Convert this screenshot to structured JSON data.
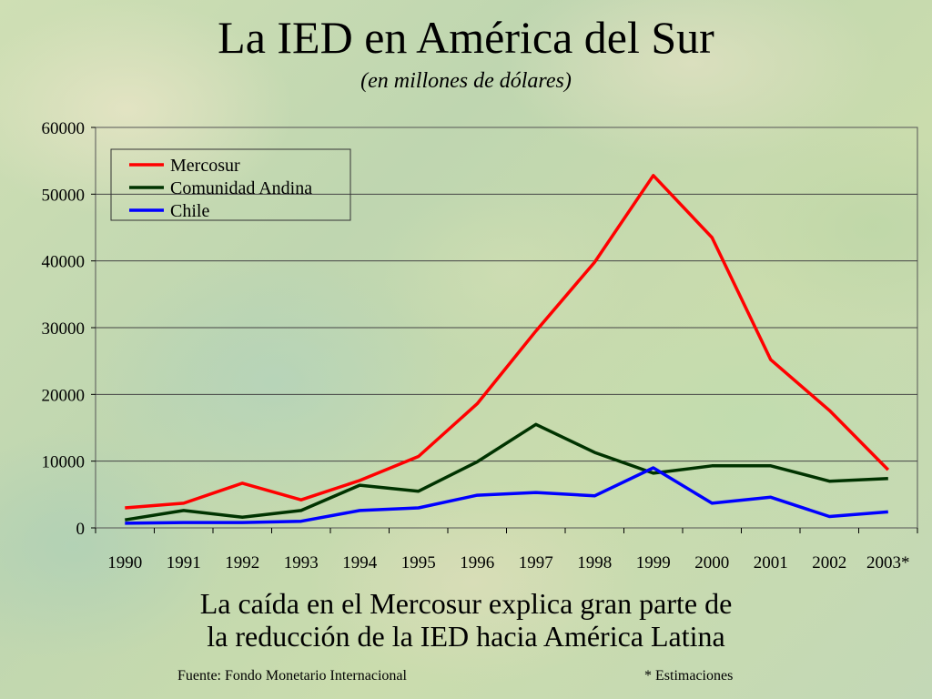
{
  "chart_data": {
    "type": "line",
    "title": "La IED en América del Sur",
    "subtitle": "(en millones de dólares)",
    "categories": [
      "1990",
      "1991",
      "1992",
      "1993",
      "1994",
      "1995",
      "1996",
      "1997",
      "1998",
      "1999",
      "2000",
      "2001",
      "2002",
      "2003*"
    ],
    "series": [
      {
        "name": "Mercosur",
        "color": "#ff0000",
        "values": [
          3000,
          3700,
          6700,
          4200,
          7100,
          10700,
          18600,
          29500,
          39800,
          52800,
          43500,
          25200,
          17600,
          8700
        ]
      },
      {
        "name": "Comunidad Andina",
        "color": "#003300",
        "values": [
          1200,
          2600,
          1600,
          2600,
          6400,
          5500,
          9900,
          15500,
          11300,
          8200,
          9300,
          9300,
          7000,
          7400
        ]
      },
      {
        "name": "Chile",
        "color": "#0000ff",
        "values": [
          700,
          800,
          800,
          1000,
          2600,
          3000,
          4900,
          5300,
          4800,
          9000,
          3700,
          4600,
          1700,
          2400
        ]
      }
    ],
    "ylim": [
      0,
      60000
    ],
    "yticks": [
      0,
      10000,
      20000,
      30000,
      40000,
      50000,
      60000
    ],
    "grid": true,
    "legend_position": "top-left"
  },
  "caption_line1": "La caída en el Mercosur explica gran parte de",
  "caption_line2": "la reducción de la IED hacia América Latina",
  "source": "Fuente: Fondo Monetario Internacional",
  "note": "* Estimaciones"
}
